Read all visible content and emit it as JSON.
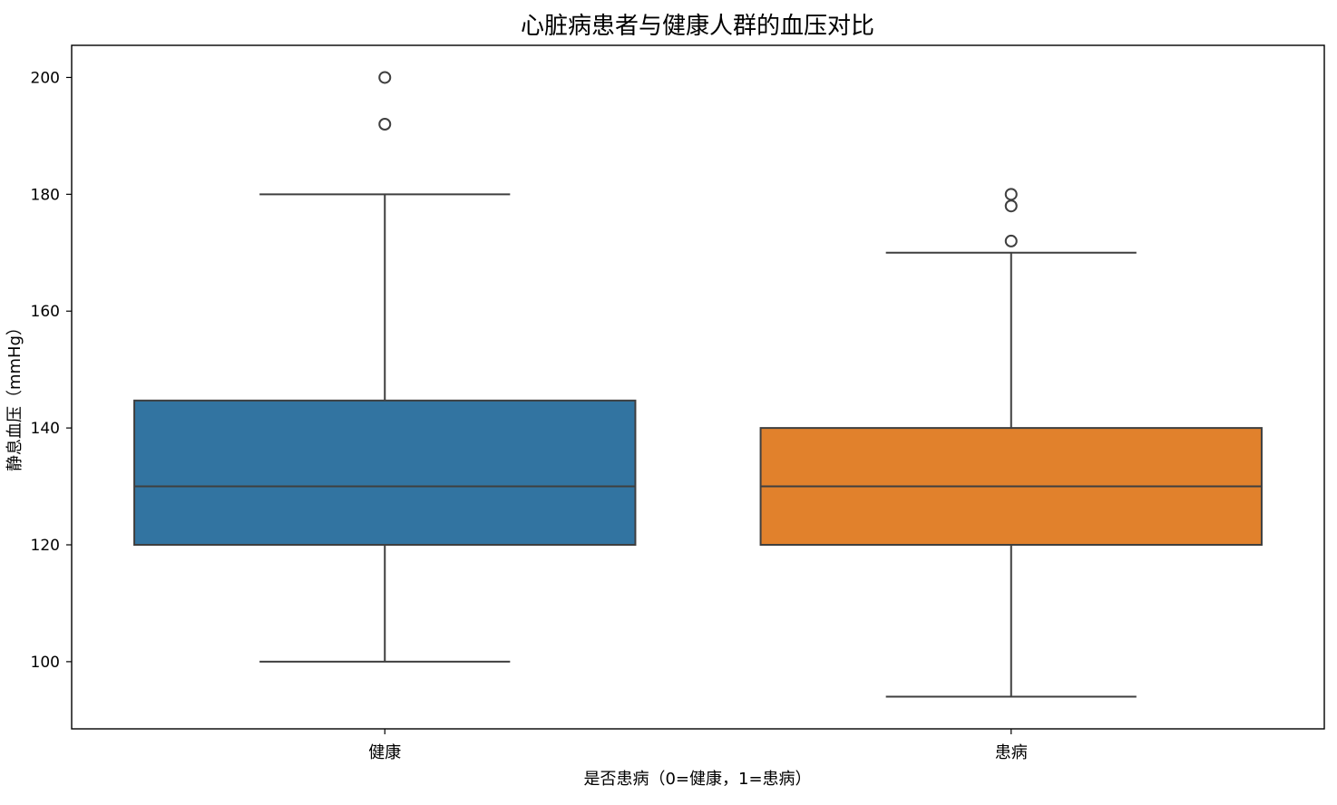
{
  "chart_data": {
    "type": "box",
    "title": "心脏病患者与健康人群的血压对比",
    "xlabel": "是否患病（0=健康，1=患病）",
    "ylabel": "静息血压（mmHg）",
    "ylim": [
      88.5,
      205.5
    ],
    "yticks": [
      100,
      120,
      140,
      160,
      180,
      200
    ],
    "categories": [
      "健康",
      "患病"
    ],
    "grid": false,
    "boxes": [
      {
        "category": "健康",
        "color": "#3274a1",
        "whisker_low": 100,
        "q1": 120,
        "median": 130,
        "q3": 144.7,
        "whisker_high": 180,
        "outliers": [
          192,
          200
        ]
      },
      {
        "category": "患病",
        "color": "#e1812c",
        "whisker_low": 94,
        "q1": 120,
        "median": 130,
        "q3": 140,
        "whisker_high": 170,
        "outliers": [
          172,
          178,
          180
        ]
      }
    ]
  }
}
